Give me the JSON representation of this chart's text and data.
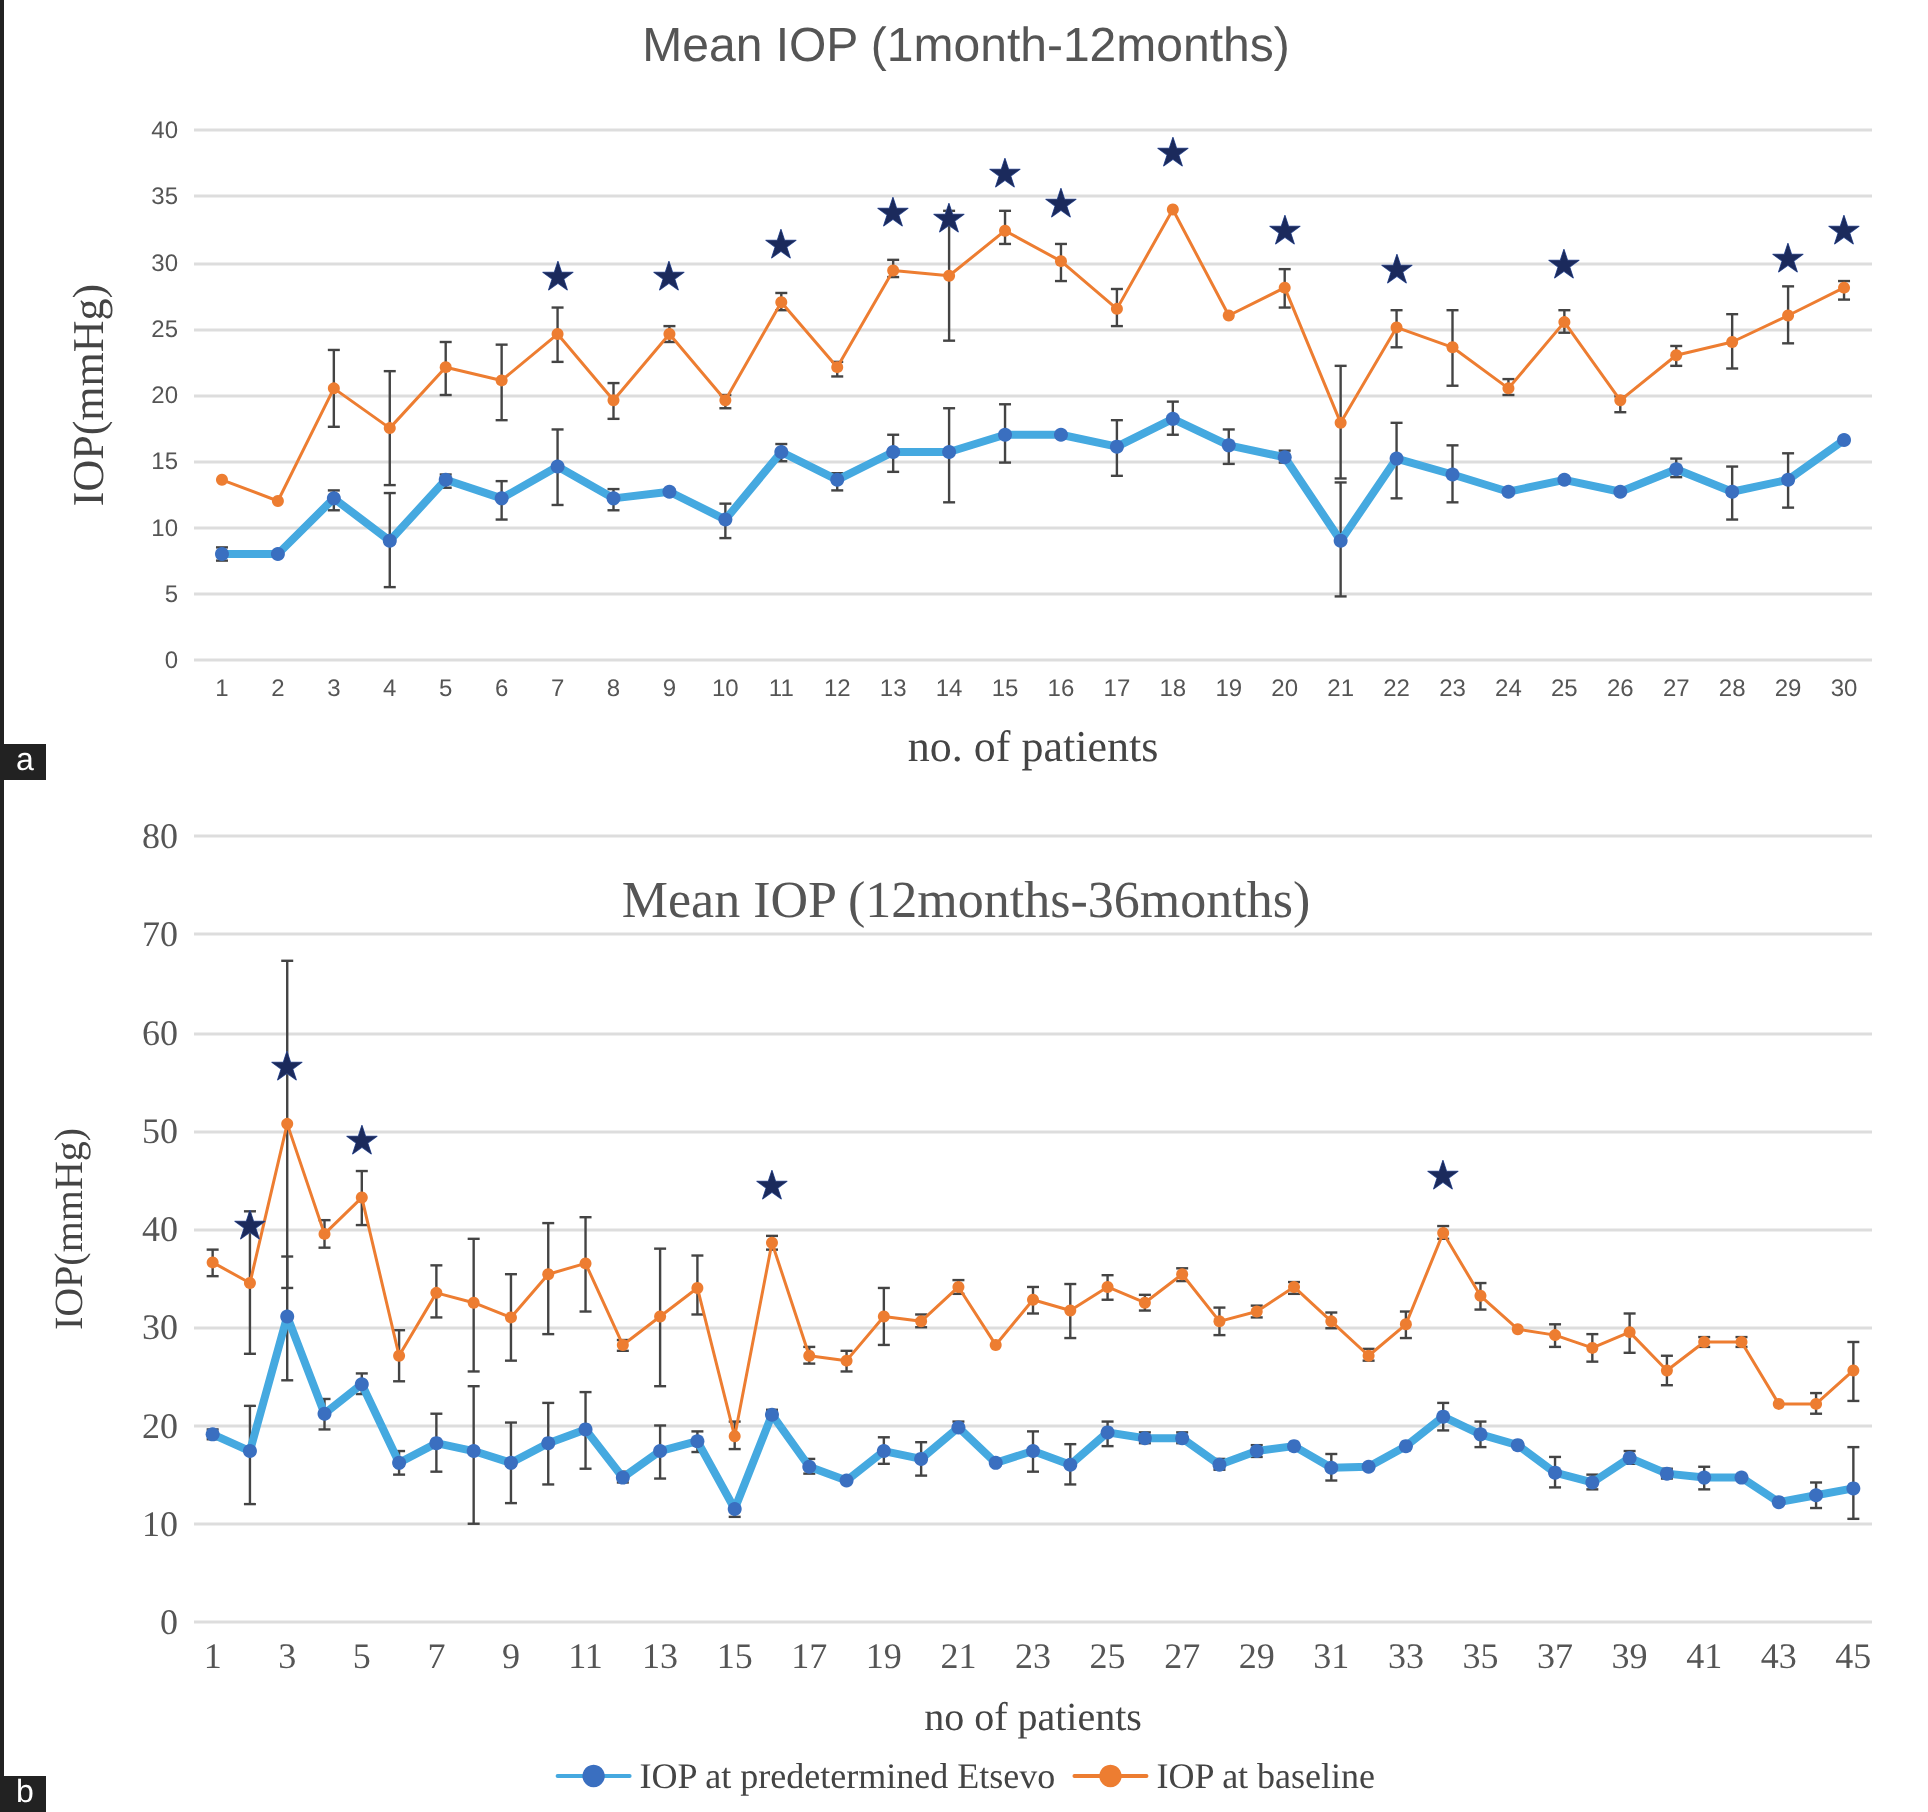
{
  "chart_data": [
    {
      "type": "line",
      "title": "Mean IOP (1month-12months)",
      "xlabel": "no. of patients",
      "ylabel": "IOP(mmHg)",
      "x": [
        1,
        2,
        3,
        4,
        5,
        6,
        7,
        8,
        9,
        10,
        11,
        12,
        13,
        14,
        15,
        16,
        17,
        18,
        19,
        20,
        21,
        22,
        23,
        24,
        25,
        26,
        27,
        28,
        29,
        30
      ],
      "xlim": [
        0.5,
        30.5
      ],
      "xticks": [
        1,
        2,
        3,
        4,
        5,
        6,
        7,
        8,
        9,
        10,
        11,
        12,
        13,
        14,
        15,
        16,
        17,
        18,
        19,
        20,
        21,
        22,
        23,
        24,
        25,
        26,
        27,
        28,
        29,
        30
      ],
      "ylim": [
        0,
        40
      ],
      "yticks": [
        0,
        5,
        10,
        15,
        20,
        25,
        30,
        35,
        40
      ],
      "grid": "y",
      "marker": "circle",
      "line_style": "solid",
      "series": [
        {
          "color": "#45a9e0",
          "values": [
            8,
            8,
            12.2,
            9,
            13.6,
            12.2,
            14.6,
            12.2,
            12.7,
            10.6,
            15.7,
            13.6,
            15.7,
            15.7,
            17,
            17,
            16.1,
            18.2,
            16.2,
            15.3,
            9,
            15.2,
            14,
            12.7,
            13.6,
            12.7,
            14.4,
            12.7,
            13.6,
            16.6
          ],
          "errors": [
            [
              7.5,
              8.5
            ],
            null,
            [
              11.3,
              12.8
            ],
            [
              5.5,
              12.6
            ],
            [
              13,
              14
            ],
            [
              10.6,
              13.5
            ],
            [
              11.7,
              17.4
            ],
            [
              11.3,
              12.9
            ],
            null,
            [
              9.2,
              11.8
            ],
            [
              15,
              16.3
            ],
            [
              12.8,
              14.1
            ],
            [
              14.2,
              17
            ],
            [
              11.9,
              19
            ],
            [
              14.9,
              19.3
            ],
            null,
            [
              13.9,
              18.1
            ],
            [
              17,
              19.5
            ],
            [
              14.8,
              17.4
            ],
            [
              14.9,
              15.8
            ],
            [
              4.8,
              13.4
            ],
            [
              12.2,
              17.9
            ],
            [
              11.9,
              16.2
            ],
            null,
            null,
            null,
            [
              13.8,
              15.2
            ],
            [
              10.6,
              14.6
            ],
            [
              11.5,
              15.6
            ],
            null
          ]
        },
        {
          "color": "#ed7d31",
          "values": [
            13.6,
            12,
            20.5,
            17.5,
            22.1,
            21.1,
            24.6,
            19.6,
            24.6,
            19.6,
            27,
            22.1,
            29.4,
            29,
            32.4,
            30.1,
            26.5,
            34,
            26,
            28.1,
            17.9,
            25.1,
            23.6,
            20.5,
            25.5,
            19.6,
            23,
            24,
            26,
            28.1
          ],
          "errors": [
            null,
            null,
            [
              17.6,
              23.4
            ],
            [
              13.2,
              21.8
            ],
            [
              20,
              24
            ],
            [
              18.1,
              23.8
            ],
            [
              22.5,
              26.6
            ],
            [
              18.2,
              20.9
            ],
            [
              24,
              25.2
            ],
            [
              19,
              20
            ],
            [
              26.4,
              27.7
            ],
            [
              21.4,
              22.5
            ],
            [
              28.9,
              30.2
            ],
            [
              24.1,
              33.9
            ],
            [
              31.4,
              33.9
            ],
            [
              28.6,
              31.4
            ],
            [
              25.2,
              28
            ],
            null,
            null,
            [
              26.6,
              29.5
            ],
            [
              13.7,
              22.2
            ],
            [
              23.6,
              26.4
            ],
            [
              20.7,
              26.4
            ],
            [
              20,
              21.2
            ],
            [
              24.7,
              26.4
            ],
            [
              18.7,
              19.9
            ],
            [
              22.2,
              23.7
            ],
            [
              22,
              26.1
            ],
            [
              23.9,
              28.2
            ],
            [
              27.2,
              28.6
            ]
          ]
        }
      ],
      "annotations": [
        "a",
        {
          "text": "★",
          "x": 7,
          "y": 24.6
        },
        {
          "text": "★",
          "x": 9,
          "y": 24.6
        },
        {
          "text": "★",
          "x": 11,
          "y": 27
        },
        {
          "text": "★",
          "x": 13,
          "y": 29.4
        },
        {
          "text": "★",
          "x": 14,
          "y": 29
        },
        {
          "text": "★",
          "x": 15,
          "y": 32.4
        },
        {
          "text": "★",
          "x": 16,
          "y": 30.1
        },
        {
          "text": "★",
          "x": 18,
          "y": 34
        },
        {
          "text": "★",
          "x": 20,
          "y": 28.1
        },
        {
          "text": "★",
          "x": 22,
          "y": 25.1
        },
        {
          "text": "★",
          "x": 25,
          "y": 25.5
        },
        {
          "text": "★",
          "x": 29,
          "y": 26
        },
        {
          "text": "★",
          "x": 30,
          "y": 28.1
        }
      ]
    },
    {
      "type": "line",
      "title": "Mean IOP (12months-36months)",
      "xlabel": "no of patients",
      "ylabel": "IOP(mmHg)",
      "x": [
        1,
        2,
        3,
        4,
        5,
        6,
        7,
        8,
        9,
        10,
        11,
        12,
        13,
        14,
        15,
        16,
        17,
        18,
        19,
        20,
        21,
        22,
        23,
        24,
        25,
        26,
        27,
        28,
        29,
        30,
        31,
        32,
        33,
        34,
        35,
        36,
        37,
        38,
        39,
        40,
        41,
        42,
        43,
        44,
        45
      ],
      "xlim": [
        0.5,
        45.5
      ],
      "xticks": [
        1,
        3,
        5,
        7,
        9,
        11,
        13,
        15,
        17,
        19,
        21,
        23,
        25,
        27,
        29,
        31,
        33,
        35,
        37,
        39,
        41,
        43,
        45
      ],
      "ylim": [
        0,
        80
      ],
      "yticks": [
        0,
        10,
        20,
        30,
        40,
        50,
        60,
        70,
        80
      ],
      "grid": "y",
      "marker": "circle",
      "line_style": "solid",
      "legend": "bottom",
      "series": [
        {
          "name": "IOP at predetermined Etsevo",
          "color": "#45a9e0",
          "values": [
            19.1,
            17.4,
            31.1,
            21.2,
            24.2,
            16.2,
            18.2,
            17.4,
            16.2,
            18.2,
            19.6,
            14.7,
            17.4,
            18.4,
            11.5,
            21.1,
            15.8,
            14.4,
            17.4,
            16.6,
            19.8,
            16.2,
            17.4,
            16,
            19.3,
            18.7,
            18.7,
            16,
            17.4,
            17.9,
            15.7,
            15.8,
            17.9,
            20.9,
            19.1,
            18,
            15.2,
            14.2,
            16.7,
            15.1,
            14.7,
            14.7,
            12.2,
            12.9,
            13.6
          ],
          "errors": [
            [
              18.6,
              19.6
            ],
            [
              12,
              22
            ],
            [
              24.6,
              37.2
            ],
            [
              19.6,
              22.7
            ],
            [
              23.2,
              25.3
            ],
            [
              15,
              17.4
            ],
            [
              15.3,
              21.2
            ],
            [
              10,
              24
            ],
            [
              12.1,
              20.3
            ],
            [
              14,
              22.3
            ],
            [
              15.6,
              23.4
            ],
            [
              14.2,
              15.3
            ],
            [
              14.6,
              20
            ],
            [
              17.3,
              19.4
            ],
            [
              10.7,
              12.2
            ],
            [
              20.6,
              21.6
            ],
            [
              15.1,
              16.6
            ],
            null,
            [
              16.1,
              18.8
            ],
            [
              14.9,
              18.3
            ],
            [
              19.3,
              20.4
            ],
            null,
            [
              15.3,
              19.4
            ],
            [
              14,
              18.1
            ],
            [
              17.9,
              20.4
            ],
            [
              18.2,
              19.3
            ],
            [
              18.2,
              19.3
            ],
            [
              15.5,
              16.6
            ],
            [
              16.8,
              18
            ],
            null,
            [
              14.4,
              17.1
            ],
            null,
            null,
            [
              19.5,
              22.3
            ],
            [
              17.8,
              20.4
            ],
            null,
            [
              13.7,
              16.8
            ],
            [
              13.5,
              15
            ],
            [
              16.1,
              17.4
            ],
            [
              14.6,
              15.6
            ],
            [
              13.5,
              15.8
            ],
            null,
            null,
            [
              11.6,
              14.2
            ],
            [
              10.5,
              17.8
            ]
          ]
        },
        {
          "name": "IOP at baseline",
          "color": "#ed7d31",
          "values": [
            36.6,
            34.5,
            50.7,
            39.5,
            43.2,
            27.1,
            33.5,
            32.5,
            31,
            35.4,
            36.5,
            28.2,
            31.1,
            34,
            18.9,
            38.6,
            27.1,
            26.6,
            31.1,
            30.6,
            34.1,
            28.2,
            32.8,
            31.7,
            34.1,
            32.5,
            35.4,
            30.6,
            31.6,
            34.1,
            30.6,
            27.1,
            30.3,
            39.6,
            33.2,
            29.8,
            29.2,
            27.9,
            29.5,
            25.6,
            28.5,
            28.5,
            22.2,
            22.2,
            25.6
          ],
          "errors": [
            [
              35.2,
              37.9
            ],
            [
              27.3,
              41.8
            ],
            [
              34,
              67.3
            ],
            [
              38.1,
              40.9
            ],
            [
              40.4,
              45.9
            ],
            [
              24.5,
              29.7
            ],
            [
              31,
              36.3
            ],
            [
              25.5,
              39
            ],
            [
              26.6,
              35.4
            ],
            [
              29.3,
              40.6
            ],
            [
              31.6,
              41.2
            ],
            [
              27.6,
              28.7
            ],
            [
              24,
              38
            ],
            [
              31.3,
              37.3
            ],
            [
              17.6,
              20.4
            ],
            [
              37.9,
              39.3
            ],
            [
              26.3,
              28
            ],
            [
              25.5,
              27.6
            ],
            [
              28.2,
              34
            ],
            [
              30,
              31.3
            ],
            [
              33.4,
              34.8
            ],
            null,
            [
              31.4,
              34.1
            ],
            [
              28.9,
              34.4
            ],
            [
              32.8,
              35.3
            ],
            [
              31.7,
              33.3
            ],
            [
              34.7,
              36
            ],
            [
              29.2,
              32
            ],
            [
              31,
              32.2
            ],
            [
              33.4,
              34.6
            ],
            [
              29.9,
              31.5
            ],
            [
              26.6,
              27.8
            ],
            [
              28.9,
              31.6
            ],
            [
              39,
              40.3
            ],
            [
              31.8,
              34.5
            ],
            null,
            [
              28,
              30.3
            ],
            [
              26.5,
              29.3
            ],
            [
              27.4,
              31.4
            ],
            [
              24.1,
              27.1
            ],
            [
              28,
              29
            ],
            [
              28,
              29
            ],
            null,
            [
              21.2,
              23.3
            ],
            [
              22.5,
              28.5
            ]
          ]
        }
      ],
      "annotations": [
        "b",
        {
          "text": "★",
          "x": 2,
          "y": 34.5
        },
        {
          "text": "★",
          "x": 3,
          "y": 50.7
        },
        {
          "text": "★",
          "x": 5,
          "y": 43.2
        },
        {
          "text": "★",
          "x": 16,
          "y": 38.6
        },
        {
          "text": "★",
          "x": 34,
          "y": 39.6
        }
      ]
    }
  ]
}
